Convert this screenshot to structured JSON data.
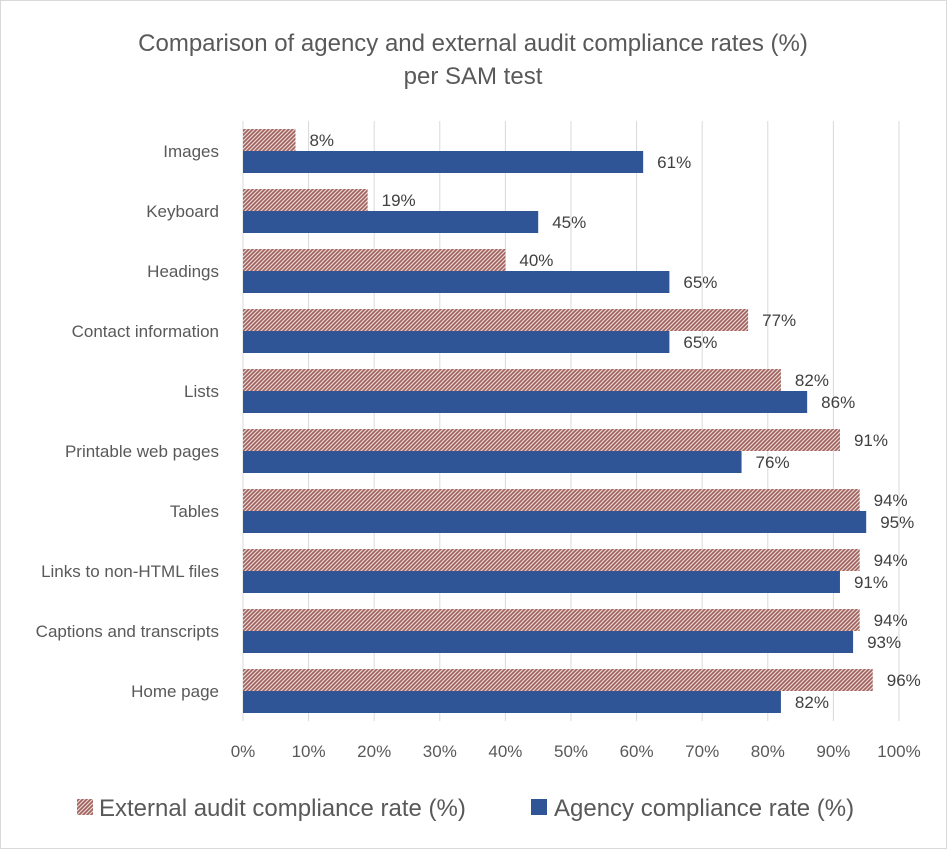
{
  "chart_data": {
    "type": "bar",
    "orientation": "horizontal",
    "title": [
      "Comparison of agency and external audit compliance rates (%)",
      "per SAM test"
    ],
    "categories": [
      "Images",
      "Keyboard",
      "Headings",
      "Contact information",
      "Lists",
      "Printable web pages",
      "Tables",
      "Links to non-HTML files",
      "Captions and transcripts",
      "Home page"
    ],
    "series": [
      {
        "name": "External audit compliance rate (%)",
        "values": [
          8,
          19,
          40,
          77,
          82,
          91,
          94,
          94,
          94,
          96
        ],
        "labels": [
          "8%",
          "19%",
          "40%",
          "77%",
          "82%",
          "91%",
          "94%",
          "94%",
          "94%",
          "96%"
        ],
        "color": "#9e5f5a",
        "pattern": "diagonal-hatch"
      },
      {
        "name": "Agency compliance rate (%)",
        "values": [
          61,
          45,
          65,
          65,
          86,
          76,
          95,
          91,
          93,
          82
        ],
        "labels": [
          "61%",
          "45%",
          "65%",
          "65%",
          "86%",
          "76%",
          "95%",
          "91%",
          "93%",
          "82%"
        ],
        "color": "#2f5597"
      }
    ],
    "xlim": [
      0,
      100
    ],
    "xticks": [
      "0%",
      "10%",
      "20%",
      "30%",
      "40%",
      "50%",
      "60%",
      "70%",
      "80%",
      "90%",
      "100%"
    ],
    "grid": "vertical",
    "legend": "bottom"
  }
}
